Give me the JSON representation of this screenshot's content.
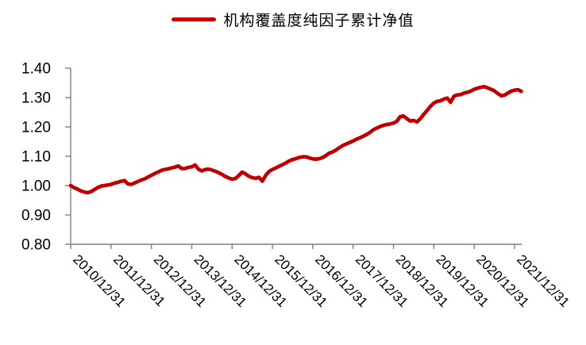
{
  "legend": {
    "label": "机构覆盖度纯因子累计净值"
  },
  "colors": {
    "line": "#C00000",
    "axis": "#7F7F7F",
    "text": "#000000",
    "background": "#FFFFFF"
  },
  "chart_data": {
    "type": "line",
    "title": "",
    "legend_position": "top-center",
    "grid": false,
    "x_axis": {
      "tick_labels": [
        "2010/12/31",
        "2011/12/31",
        "2012/12/31",
        "2013/12/31",
        "2014/12/31",
        "2015/12/31",
        "2016/12/31",
        "2017/12/31",
        "2018/12/31",
        "2019/12/31",
        "2020/12/31",
        "2021/12/31"
      ],
      "label_rotation_deg": 45,
      "start": "2010/12/31",
      "point_interval": "monthly",
      "points_per_tick": 12
    },
    "y_axis": {
      "min": 0.8,
      "max": 1.4,
      "step": 0.1,
      "tick_labels": [
        "0.80",
        "0.90",
        "1.00",
        "1.10",
        "1.20",
        "1.30",
        "1.40"
      ]
    },
    "series": [
      {
        "name": "机构覆盖度纯因子累计净值",
        "color": "#C00000",
        "values": [
          1.0,
          0.993,
          0.988,
          0.982,
          0.978,
          0.976,
          0.979,
          0.986,
          0.993,
          0.998,
          1.0,
          1.002,
          1.004,
          1.008,
          1.011,
          1.015,
          1.017,
          1.006,
          1.004,
          1.009,
          1.014,
          1.019,
          1.023,
          1.029,
          1.035,
          1.041,
          1.046,
          1.052,
          1.055,
          1.057,
          1.06,
          1.063,
          1.067,
          1.058,
          1.058,
          1.062,
          1.064,
          1.07,
          1.056,
          1.05,
          1.055,
          1.056,
          1.053,
          1.049,
          1.044,
          1.038,
          1.031,
          1.026,
          1.022,
          1.024,
          1.034,
          1.046,
          1.04,
          1.032,
          1.027,
          1.025,
          1.028,
          1.015,
          1.035,
          1.048,
          1.055,
          1.06,
          1.066,
          1.071,
          1.077,
          1.084,
          1.089,
          1.092,
          1.096,
          1.098,
          1.098,
          1.094,
          1.091,
          1.09,
          1.092,
          1.096,
          1.103,
          1.111,
          1.115,
          1.122,
          1.13,
          1.137,
          1.142,
          1.147,
          1.152,
          1.158,
          1.163,
          1.168,
          1.174,
          1.181,
          1.19,
          1.196,
          1.201,
          1.205,
          1.208,
          1.21,
          1.213,
          1.219,
          1.235,
          1.237,
          1.228,
          1.22,
          1.222,
          1.217,
          1.228,
          1.243,
          1.256,
          1.27,
          1.281,
          1.287,
          1.289,
          1.295,
          1.298,
          1.284,
          1.305,
          1.309,
          1.31,
          1.315,
          1.318,
          1.322,
          1.328,
          1.332,
          1.335,
          1.337,
          1.333,
          1.328,
          1.323,
          1.314,
          1.306,
          1.308,
          1.315,
          1.322,
          1.325,
          1.327,
          1.321
        ]
      }
    ]
  }
}
